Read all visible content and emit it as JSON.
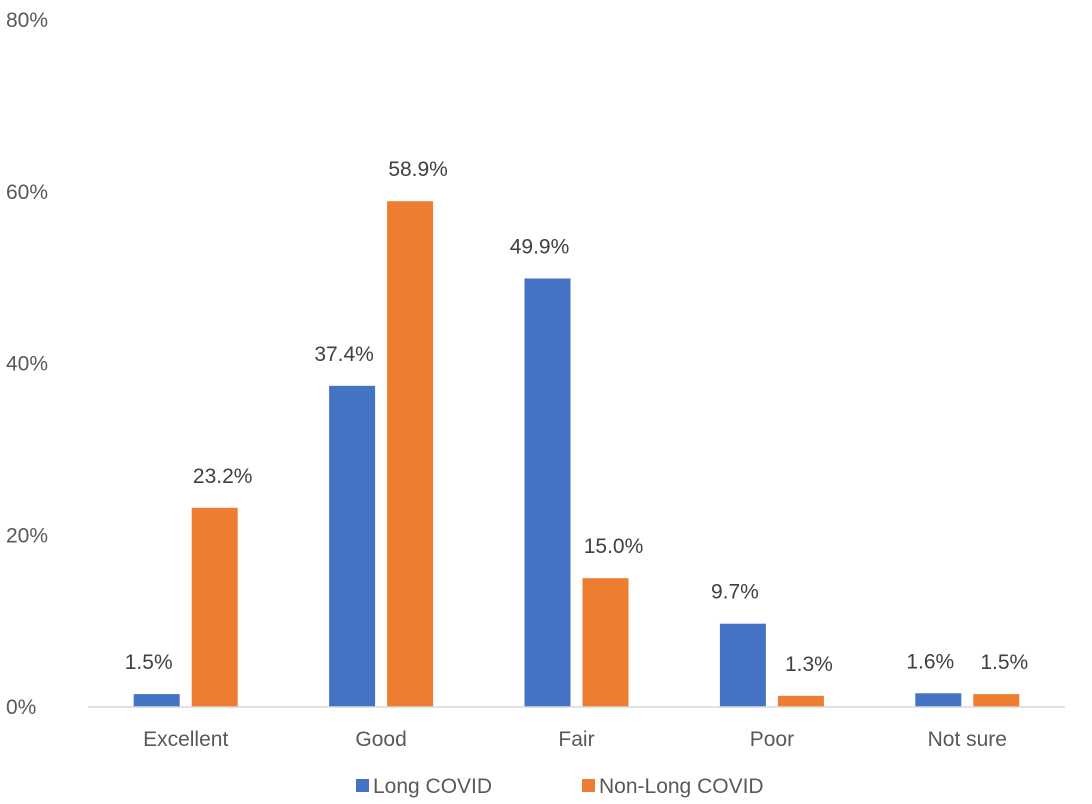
{
  "chart_data": {
    "type": "bar",
    "categories": [
      "Excellent",
      "Good",
      "Fair",
      "Poor",
      "Not sure"
    ],
    "series": [
      {
        "name": "Long COVID",
        "color": "#4472C4",
        "values": [
          1.5,
          37.4,
          49.9,
          9.7,
          1.6
        ],
        "labels": [
          "1.5%",
          "37.4%",
          "49.9%",
          "9.7%",
          "1.6%"
        ]
      },
      {
        "name": "Non-Long COVID",
        "color": "#ED7D31",
        "values": [
          23.2,
          58.9,
          15.0,
          1.3,
          1.5
        ],
        "labels": [
          "23.2%",
          "58.9%",
          "15.0%",
          "1.3%",
          "1.5%"
        ]
      }
    ],
    "y_ticks": [
      {
        "value": 0,
        "label": "0%"
      },
      {
        "value": 20,
        "label": "20%"
      },
      {
        "value": 40,
        "label": "40%"
      },
      {
        "value": 60,
        "label": "60%"
      },
      {
        "value": 80,
        "label": "80%"
      }
    ],
    "ylim": [
      0,
      80
    ],
    "title": "",
    "xlabel": "",
    "ylabel": "",
    "grid": false,
    "legend_position": "bottom"
  }
}
